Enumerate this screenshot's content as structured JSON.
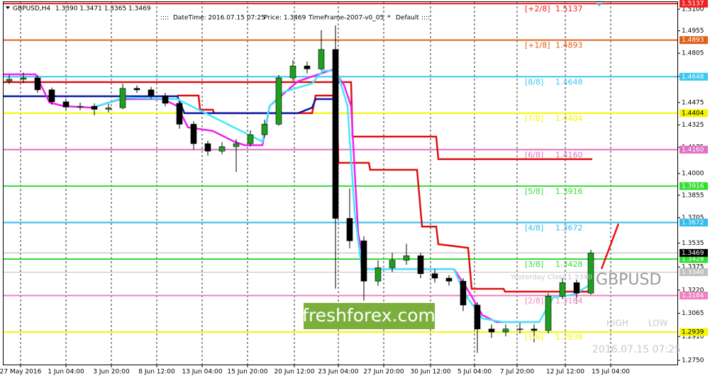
{
  "chart_data": {
    "type": "candlestick",
    "title": "GBPUSD,H4",
    "header_quote": "1.3390 1.3471 1.3365 1.3469",
    "info": {
      "datetime": "DateTime: 2016.07.15 07:25",
      "price": "Price: 1.3469",
      "timeframe": "TimeFrame-2007-v0_05",
      "star": "*",
      "mode": "Default"
    },
    "x": [
      2,
      7,
      12,
      17,
      22,
      27,
      32,
      37,
      42,
      47,
      52,
      57,
      62,
      67,
      72,
      77,
      82,
      87,
      92,
      97,
      102,
      107,
      112,
      117,
      122,
      127,
      132,
      137,
      142,
      147,
      152,
      157,
      162,
      167,
      172,
      177,
      182,
      187,
      192,
      197,
      202,
      207
    ],
    "open": [
      1.462,
      1.4631,
      1.464,
      1.456,
      1.448,
      1.4445,
      1.445,
      1.443,
      1.444,
      1.457,
      1.456,
      1.452,
      1.447,
      1.433,
      1.42,
      1.415,
      1.418,
      1.42,
      1.426,
      1.433,
      1.464,
      1.472,
      1.47,
      1.483,
      1.37,
      1.355,
      1.328,
      1.337,
      1.342,
      1.345,
      1.333,
      1.33,
      1.328,
      1.312,
      1.296,
      1.294,
      1.296,
      1.296,
      1.295,
      1.318,
      1.327,
      1.32
    ],
    "high": [
      1.466,
      1.4675,
      1.466,
      1.4575,
      1.45,
      1.4475,
      1.447,
      1.4465,
      1.46,
      1.459,
      1.458,
      1.454,
      1.448,
      1.435,
      1.422,
      1.421,
      1.423,
      1.429,
      1.436,
      1.466,
      1.476,
      1.475,
      1.496,
      1.499,
      1.39,
      1.358,
      1.342,
      1.347,
      1.353,
      1.347,
      1.336,
      1.332,
      1.33,
      1.314,
      1.299,
      1.299,
      1.3,
      1.299,
      1.32,
      1.33,
      1.329,
      1.349
    ],
    "low": [
      1.46,
      1.4605,
      1.454,
      1.446,
      1.442,
      1.4425,
      1.439,
      1.441,
      1.443,
      1.454,
      1.45,
      1.445,
      1.43,
      1.416,
      1.412,
      1.413,
      1.401,
      1.418,
      1.424,
      1.432,
      1.462,
      1.467,
      1.469,
      1.323,
      1.35,
      1.315,
      1.325,
      1.334,
      1.339,
      1.33,
      1.327,
      1.325,
      1.308,
      1.28,
      1.29,
      1.291,
      1.293,
      1.287,
      1.293,
      1.316,
      1.313,
      1.319
    ],
    "close": [
      1.4631,
      1.464,
      1.456,
      1.448,
      1.4445,
      1.445,
      1.443,
      1.444,
      1.457,
      1.456,
      1.452,
      1.447,
      1.433,
      1.42,
      1.415,
      1.418,
      1.42,
      1.426,
      1.433,
      1.464,
      1.472,
      1.47,
      1.483,
      1.37,
      1.355,
      1.328,
      1.337,
      1.342,
      1.345,
      1.333,
      1.33,
      1.328,
      1.312,
      1.296,
      1.294,
      1.296,
      1.296,
      1.295,
      1.318,
      1.327,
      1.32,
      1.3469
    ],
    "candle_colors": {
      "up": "#1f9e1f",
      "down": "#000000"
    },
    "xlim": [
      0,
      237.5
    ],
    "xticks": [
      {
        "value": 6,
        "label": "27 May 2016"
      },
      {
        "value": 22,
        "label": "1 Jun 04:00"
      },
      {
        "value": 38,
        "label": "3 Jun 20:00"
      },
      {
        "value": 54,
        "label": "8 Jun 12:00"
      },
      {
        "value": 70,
        "label": "13 Jun 04:00"
      },
      {
        "value": 86,
        "label": "15 Jun 20:00"
      },
      {
        "value": 102.5,
        "label": "20 Jun 12:00"
      },
      {
        "value": 118,
        "label": "23 Jun 04:00"
      },
      {
        "value": 134,
        "label": "27 Jun 20:00"
      },
      {
        "value": 150.5,
        "label": "30 Jun 12:00"
      },
      {
        "value": 166,
        "label": "5 Jul 04:00"
      },
      {
        "value": 181,
        "label": "7 Jul 20:00"
      },
      {
        "value": 198,
        "label": "12 Jul 12:00"
      },
      {
        "value": 214,
        "label": "15 Jul 04:00"
      }
    ],
    "ylim": [
      1.2722,
      1.5147
    ],
    "yticks": [
      {
        "value": 1.51,
        "label": "1.5100"
      },
      {
        "value": 1.4955,
        "label": "1.4955"
      },
      {
        "value": 1.4805,
        "label": "1.4805"
      },
      {
        "value": 1.465,
        "label": "1.4650"
      },
      {
        "value": 1.4475,
        "label": "1.4475"
      },
      {
        "value": 1.4325,
        "label": "1.4325"
      },
      {
        "value": 1.4175,
        "label": "1.4175"
      },
      {
        "value": 1.4,
        "label": "1.4000"
      },
      {
        "value": 1.3855,
        "label": "1.3855"
      },
      {
        "value": 1.3705,
        "label": "1.3705"
      },
      {
        "value": 1.3535,
        "label": "1.3535"
      },
      {
        "value": 1.3375,
        "label": "1.3375"
      },
      {
        "value": 1.322,
        "label": "1.3220"
      },
      {
        "value": 1.3065,
        "label": "1.3065"
      },
      {
        "value": 1.291,
        "label": "1.2910"
      },
      {
        "value": 1.275,
        "label": "1.2750"
      }
    ],
    "levels": {
      "names": [
        "[+2/8]",
        "[+1/8]",
        "[8/8]",
        "[7/8]",
        "[6/8]",
        "[5/8]",
        "[4/8]",
        "[3/8]",
        "[2/8]",
        "[1/8]"
      ],
      "values": [
        1.5137,
        1.4893,
        1.4648,
        1.4404,
        1.416,
        1.3916,
        1.3672,
        1.3428,
        1.3184,
        1.2939
      ],
      "value_labels": [
        "1.5137",
        "1.4893",
        "1.4648",
        "1.4404",
        "1.4160",
        "1.3916",
        "1.3672",
        "1.3428",
        "1.3184",
        "1.2939"
      ],
      "colors": [
        "#ee2222",
        "#e0601a",
        "#3cc8f0",
        "#f5f500",
        "#e070c0",
        "#33dd33",
        "#33bbee",
        "#33dd33",
        "#f080c0",
        "#f5f500"
      ]
    },
    "lines": [
      {
        "color": "#dd1111",
        "x": [
          0,
          122.5,
          123,
          152.5,
          153.25,
          207.5
        ],
        "values": [
          1.4612,
          1.4612,
          1.4247,
          1.4247,
          1.4096,
          1.4096
        ]
      },
      {
        "color": "#dd1111",
        "x": [
          61.25,
          68.75,
          69.25,
          73.75,
          74.25,
          108.75,
          110,
          117.5,
          118,
          128.75,
          129.25,
          145.75,
          147.5,
          152.5,
          153.25,
          163.75,
          165,
          176.25,
          176.75,
          207.5
        ],
        "values": [
          1.4522,
          1.4522,
          1.4427,
          1.4427,
          1.4404,
          1.4404,
          1.4522,
          1.4522,
          1.4072,
          1.4072,
          1.4025,
          1.4025,
          1.3645,
          1.3645,
          1.3527,
          1.3503,
          1.3229,
          1.3229,
          1.321,
          1.321
        ]
      },
      {
        "color": "#0a1aa8",
        "x": [
          0,
          61.25,
          63.75,
          103.75,
          108.75,
          110,
          116.25
        ],
        "values": [
          1.4517,
          1.4517,
          1.4404,
          1.4404,
          1.4441,
          1.4498,
          1.4498
        ]
      },
      {
        "color": "#ee22ee",
        "x": [
          0,
          11.25,
          16.25,
          21.25,
          31.25,
          41.25,
          56.25,
          61.25,
          65,
          73.75,
          81.25,
          85,
          91.25,
          93.75,
          103.75,
          116.25,
          120,
          122.5,
          125,
          127.5,
          158.75,
          163.75,
          168.75,
          173.75,
          188.75
        ],
        "values": [
          1.4664,
          1.4664,
          1.4475,
          1.4451,
          1.4441,
          1.4498,
          1.4498,
          1.4451,
          1.4309,
          1.4285,
          1.4214,
          1.419,
          1.419,
          1.4451,
          1.4617,
          1.4697,
          1.4593,
          1.4451,
          1.3598,
          1.3361,
          1.3361,
          1.3219,
          1.3053,
          1.3006,
          1.3006
        ]
      },
      {
        "color": "#44e8f8",
        "x": [
          31.25,
          42.5,
          61.25,
          91.25,
          93.75,
          98.75,
          108.75,
          112.5,
          117.5,
          121.25,
          123.75,
          126.25,
          158.75,
          162.5,
          168.75,
          176.25,
          188.75,
          193.75,
          201.25,
          207.5
        ],
        "values": [
          1.4441,
          1.4508,
          1.4498,
          1.4214,
          1.4451,
          1.4546,
          1.4603,
          1.4688,
          1.4688,
          1.4451,
          1.374,
          1.3361,
          1.3361,
          1.3196,
          1.303,
          1.3006,
          1.3006,
          1.3172,
          1.3191,
          1.3266
        ]
      },
      {
        "color": "#ee1111",
        "x": [
          210.75,
          216.75
        ],
        "values": [
          1.3361,
          1.3664
        ]
      }
    ],
    "current_price": {
      "value": 1.3469,
      "label": "1.3469"
    },
    "yesterday_close": {
      "text": "Yesterday Close",
      "value": 1.334,
      "label": "1.3340"
    },
    "watermark": "GBPUSD",
    "high_label": "HIGH",
    "low_label": "LOW",
    "timestamp": "2016.07.15 07:25",
    "logo": "freshforex.com"
  }
}
